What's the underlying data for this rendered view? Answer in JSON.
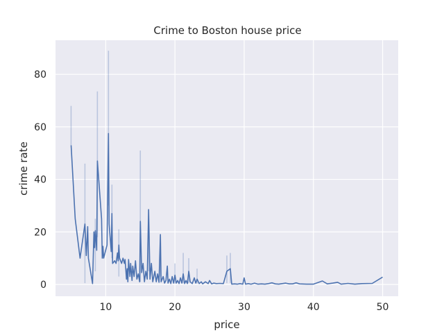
{
  "chart_data": {
    "type": "line",
    "title": "Crime to Boston house price",
    "xlabel": "price",
    "ylabel": "crime rate",
    "xlim": [
      2.75,
      52.25
    ],
    "ylim": [
      -4.5,
      93
    ],
    "xticks": [
      10,
      20,
      30,
      40,
      50
    ],
    "yticks": [
      0,
      20,
      40,
      60,
      80
    ],
    "grid": true,
    "background": "#eaeaf2",
    "line_color": "#4c72b0",
    "series": [
      {
        "values": [
          [
            5.0,
            53.0
          ],
          [
            5.6,
            25.0
          ],
          [
            6.3,
            10.0
          ],
          [
            7.0,
            23.0
          ],
          [
            7.2,
            11.0
          ],
          [
            7.4,
            22.0
          ],
          [
            7.5,
            10.0
          ],
          [
            8.1,
            0.3
          ],
          [
            8.3,
            20.0
          ],
          [
            8.4,
            14.0
          ],
          [
            8.5,
            20.5
          ],
          [
            8.7,
            13.0
          ],
          [
            8.8,
            47.0
          ],
          [
            9.4,
            25.0
          ],
          [
            9.5,
            10.0
          ],
          [
            9.6,
            14.5
          ],
          [
            9.7,
            10.0
          ],
          [
            10.2,
            15.0
          ],
          [
            10.4,
            57.5
          ],
          [
            10.5,
            23.0
          ],
          [
            10.8,
            12.5
          ],
          [
            10.9,
            27.0
          ],
          [
            11.0,
            8.0
          ],
          [
            11.3,
            9.0
          ],
          [
            11.5,
            8.0
          ],
          [
            11.7,
            12.0
          ],
          [
            11.8,
            9.0
          ],
          [
            11.9,
            15.0
          ],
          [
            12.0,
            10.0
          ],
          [
            12.3,
            8.0
          ],
          [
            12.5,
            10.0
          ],
          [
            12.7,
            8.0
          ],
          [
            12.8,
            9.5
          ],
          [
            13.0,
            2.0
          ],
          [
            13.1,
            6.0
          ],
          [
            13.2,
            1.0
          ],
          [
            13.3,
            9.5
          ],
          [
            13.5,
            3.0
          ],
          [
            13.6,
            8.0
          ],
          [
            13.8,
            1.5
          ],
          [
            13.9,
            7.0
          ],
          [
            14.1,
            3.0
          ],
          [
            14.3,
            9.0
          ],
          [
            14.5,
            2.0
          ],
          [
            14.7,
            4.0
          ],
          [
            14.9,
            1.0
          ],
          [
            15.0,
            24.0
          ],
          [
            15.2,
            4.5
          ],
          [
            15.4,
            8.0
          ],
          [
            15.6,
            1.0
          ],
          [
            15.8,
            5.0
          ],
          [
            16.0,
            2.0
          ],
          [
            16.2,
            28.5
          ],
          [
            16.4,
            2.0
          ],
          [
            16.6,
            8.0
          ],
          [
            16.8,
            1.0
          ],
          [
            17.1,
            5.0
          ],
          [
            17.3,
            1.0
          ],
          [
            17.5,
            4.0
          ],
          [
            17.7,
            0.8
          ],
          [
            17.9,
            19.0
          ],
          [
            18.0,
            1.0
          ],
          [
            18.3,
            3.0
          ],
          [
            18.5,
            0.5
          ],
          [
            18.7,
            1.5
          ],
          [
            18.9,
            7.0
          ],
          [
            19.0,
            0.5
          ],
          [
            19.2,
            2.0
          ],
          [
            19.4,
            0.3
          ],
          [
            19.6,
            3.0
          ],
          [
            19.8,
            0.5
          ],
          [
            20.0,
            3.5
          ],
          [
            20.2,
            0.5
          ],
          [
            20.4,
            1.5
          ],
          [
            20.6,
            0.3
          ],
          [
            20.8,
            2.5
          ],
          [
            21.0,
            0.5
          ],
          [
            21.2,
            4.0
          ],
          [
            21.4,
            0.3
          ],
          [
            21.6,
            1.5
          ],
          [
            21.8,
            0.3
          ],
          [
            22.0,
            5.0
          ],
          [
            22.2,
            1.0
          ],
          [
            22.5,
            0.3
          ],
          [
            22.8,
            2.5
          ],
          [
            23.0,
            0.5
          ],
          [
            23.2,
            2.0
          ],
          [
            23.5,
            0.3
          ],
          [
            23.8,
            1.0
          ],
          [
            24.0,
            0.2
          ],
          [
            24.4,
            1.0
          ],
          [
            24.8,
            0.3
          ],
          [
            25.0,
            1.5
          ],
          [
            25.3,
            0.2
          ],
          [
            25.6,
            0.5
          ],
          [
            26.0,
            0.3
          ],
          [
            26.5,
            0.4
          ],
          [
            27.0,
            0.3
          ],
          [
            27.5,
            5.0
          ],
          [
            28.0,
            6.0
          ],
          [
            28.2,
            0.1
          ],
          [
            28.6,
            0.2
          ],
          [
            29.0,
            0.1
          ],
          [
            29.4,
            0.3
          ],
          [
            29.8,
            0.1
          ],
          [
            30.0,
            2.5
          ],
          [
            30.2,
            0.1
          ],
          [
            30.6,
            0.3
          ],
          [
            31.0,
            0.1
          ],
          [
            31.5,
            0.5
          ],
          [
            32.0,
            0.1
          ],
          [
            32.5,
            0.2
          ],
          [
            33.0,
            0.1
          ],
          [
            33.5,
            0.3
          ],
          [
            34.0,
            0.6
          ],
          [
            34.5,
            0.2
          ],
          [
            35.0,
            0.1
          ],
          [
            35.5,
            0.3
          ],
          [
            36.0,
            0.5
          ],
          [
            36.5,
            0.2
          ],
          [
            37.0,
            0.2
          ],
          [
            37.5,
            0.6
          ],
          [
            38.0,
            0.2
          ],
          [
            39.0,
            0.1
          ],
          [
            40.0,
            0.1
          ],
          [
            41.3,
            1.3
          ],
          [
            42.0,
            0.2
          ],
          [
            42.8,
            0.5
          ],
          [
            43.5,
            0.8
          ],
          [
            44.0,
            0.1
          ],
          [
            45.0,
            0.4
          ],
          [
            46.0,
            0.1
          ],
          [
            47.0,
            0.3
          ],
          [
            48.5,
            0.4
          ],
          [
            50.0,
            2.8
          ]
        ],
        "ci": [
          [
            5.0,
            53.0,
            68.0
          ],
          [
            7.0,
            0.5,
            46.0
          ],
          [
            8.5,
            5.0,
            25.0
          ],
          [
            8.8,
            18.0,
            73.5
          ],
          [
            10.4,
            30.0,
            89.0
          ],
          [
            10.9,
            10.0,
            38.0
          ],
          [
            11.9,
            3.0,
            21.0
          ],
          [
            15.0,
            1.0,
            51.0
          ],
          [
            16.2,
            5.0,
            28.5
          ],
          [
            17.9,
            3.0,
            18.5
          ],
          [
            20.0,
            0.3,
            8.0
          ],
          [
            21.2,
            0.5,
            12.0
          ],
          [
            22.0,
            0.5,
            10.0
          ],
          [
            23.2,
            0.3,
            6.0
          ],
          [
            27.5,
            0.5,
            11.0
          ],
          [
            28.0,
            0.5,
            12.0
          ]
        ]
      }
    ]
  }
}
